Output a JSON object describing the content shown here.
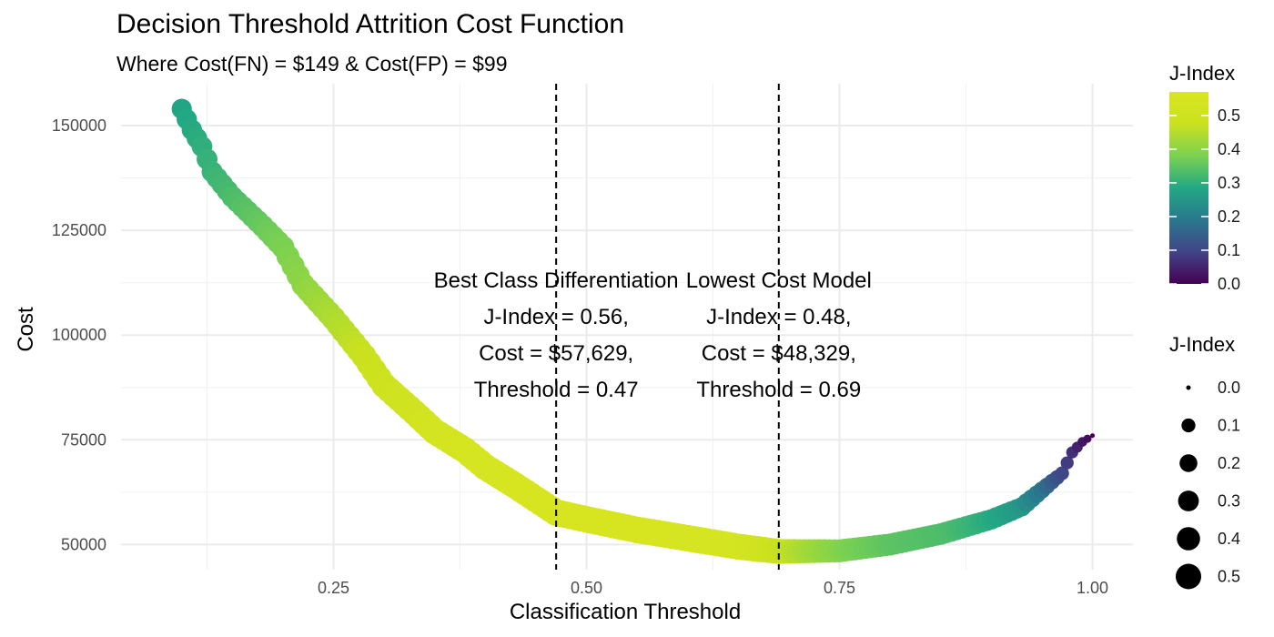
{
  "chart_data": {
    "type": "scatter",
    "title": "Decision Threshold Attrition Cost Function",
    "subtitle": "Where Cost(FN) = $149 & Cost(FP) = $99",
    "xlabel": "Classification Threshold",
    "ylabel": "Cost",
    "xlim": [
      0.04,
      1.04
    ],
    "ylim": [
      44000,
      160000
    ],
    "x_ticks": [
      0.25,
      0.5,
      0.75,
      1.0
    ],
    "x_tick_labels": [
      "0.25",
      "0.50",
      "0.75",
      "1.00"
    ],
    "y_ticks": [
      50000,
      75000,
      100000,
      125000,
      150000
    ],
    "y_tick_labels": [
      "50000",
      "75000",
      "100000",
      "125000",
      "150000"
    ],
    "grid": true,
    "series": [
      {
        "x_range": [
          0.1,
          1.0
        ],
        "x_step": 0.005,
        "cost_curve_points": [
          {
            "x": 0.1,
            "y": 154000
          },
          {
            "x": 0.11,
            "y": 149000
          },
          {
            "x": 0.12,
            "y": 145000
          },
          {
            "x": 0.13,
            "y": 139000
          },
          {
            "x": 0.15,
            "y": 133000
          },
          {
            "x": 0.18,
            "y": 126000
          },
          {
            "x": 0.2,
            "y": 121000
          },
          {
            "x": 0.22,
            "y": 112000
          },
          {
            "x": 0.25,
            "y": 104000
          },
          {
            "x": 0.28,
            "y": 95000
          },
          {
            "x": 0.3,
            "y": 88000
          },
          {
            "x": 0.33,
            "y": 81500
          },
          {
            "x": 0.35,
            "y": 77000
          },
          {
            "x": 0.38,
            "y": 72500
          },
          {
            "x": 0.4,
            "y": 68500
          },
          {
            "x": 0.43,
            "y": 64000
          },
          {
            "x": 0.47,
            "y": 57629
          },
          {
            "x": 0.5,
            "y": 56000
          },
          {
            "x": 0.55,
            "y": 53500
          },
          {
            "x": 0.6,
            "y": 51500
          },
          {
            "x": 0.65,
            "y": 49500
          },
          {
            "x": 0.69,
            "y": 48329
          },
          {
            "x": 0.75,
            "y": 48500
          },
          {
            "x": 0.8,
            "y": 50000
          },
          {
            "x": 0.85,
            "y": 52500
          },
          {
            "x": 0.9,
            "y": 56000
          },
          {
            "x": 0.93,
            "y": 59000
          },
          {
            "x": 0.95,
            "y": 63000
          },
          {
            "x": 0.97,
            "y": 67000
          },
          {
            "x": 0.98,
            "y": 72000
          },
          {
            "x": 0.99,
            "y": 74500
          },
          {
            "x": 1.0,
            "y": 76000
          }
        ],
        "j_index_curve_points": [
          {
            "x": 0.1,
            "j": 0.28
          },
          {
            "x": 0.15,
            "j": 0.33
          },
          {
            "x": 0.2,
            "j": 0.38
          },
          {
            "x": 0.25,
            "j": 0.44
          },
          {
            "x": 0.3,
            "j": 0.5
          },
          {
            "x": 0.35,
            "j": 0.53
          },
          {
            "x": 0.4,
            "j": 0.55
          },
          {
            "x": 0.47,
            "j": 0.56
          },
          {
            "x": 0.55,
            "j": 0.56
          },
          {
            "x": 0.62,
            "j": 0.55
          },
          {
            "x": 0.67,
            "j": 0.52
          },
          {
            "x": 0.69,
            "j": 0.48
          },
          {
            "x": 0.72,
            "j": 0.43
          },
          {
            "x": 0.76,
            "j": 0.38
          },
          {
            "x": 0.8,
            "j": 0.35
          },
          {
            "x": 0.86,
            "j": 0.33
          },
          {
            "x": 0.9,
            "j": 0.29
          },
          {
            "x": 0.93,
            "j": 0.25
          },
          {
            "x": 0.95,
            "j": 0.18
          },
          {
            "x": 0.97,
            "j": 0.1
          },
          {
            "x": 0.99,
            "j": 0.03
          },
          {
            "x": 1.0,
            "j": 0.0
          }
        ]
      }
    ],
    "reference_lines": [
      0.47,
      0.69
    ],
    "annotations": [
      {
        "x": 0.47,
        "y": 100000,
        "lines": [
          "Best Class Differentiation",
          "J-Index = 0.56,",
          "Cost = $57,629,",
          "Threshold = 0.47"
        ]
      },
      {
        "x": 0.69,
        "y": 100000,
        "lines": [
          "Lowest Cost Model",
          "J-Index = 0.48,",
          "Cost = $48,329,",
          "Threshold = 0.69"
        ]
      }
    ],
    "color_legend": {
      "title": "J-Index",
      "placement": "right",
      "range": [
        0,
        0.57
      ],
      "labels": [
        "0.0",
        "0.1",
        "0.2",
        "0.3",
        "0.4",
        "0.5"
      ],
      "values": [
        0.0,
        0.1,
        0.2,
        0.3,
        0.4,
        0.5
      ],
      "colors": [
        "#440154",
        "#414487",
        "#2a788e",
        "#22a884",
        "#7ad151",
        "#cae11f",
        "#d9e621"
      ]
    },
    "size_legend": {
      "title": "J-Index",
      "placement": "right",
      "labels": [
        "0.0",
        "0.1",
        "0.2",
        "0.3",
        "0.4",
        "0.5"
      ],
      "values": [
        0.0,
        0.1,
        0.2,
        0.3,
        0.4,
        0.5
      ]
    }
  }
}
